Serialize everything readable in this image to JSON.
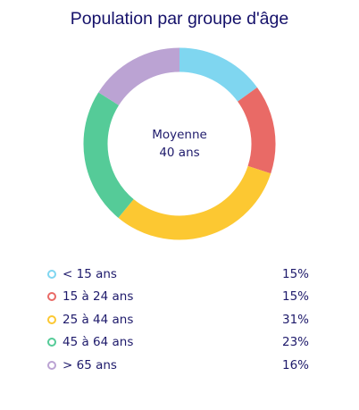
{
  "chart_data": {
    "type": "pie",
    "title": "Population par groupe d'âge",
    "center_label": "Moyenne",
    "center_value": "40 ans",
    "categories": [
      "< 15 ans",
      "15 à 24 ans",
      "25 à 44 ans",
      "45 à 64 ans",
      "> 65 ans"
    ],
    "values": [
      15,
      15,
      31,
      23,
      16
    ],
    "value_labels": [
      "15%",
      "15%",
      "31%",
      "23%",
      "16%"
    ],
    "colors": [
      "#7fd6f0",
      "#e96a66",
      "#fcc832",
      "#55cb98",
      "#bba3d3"
    ],
    "legend_position": "bottom"
  }
}
